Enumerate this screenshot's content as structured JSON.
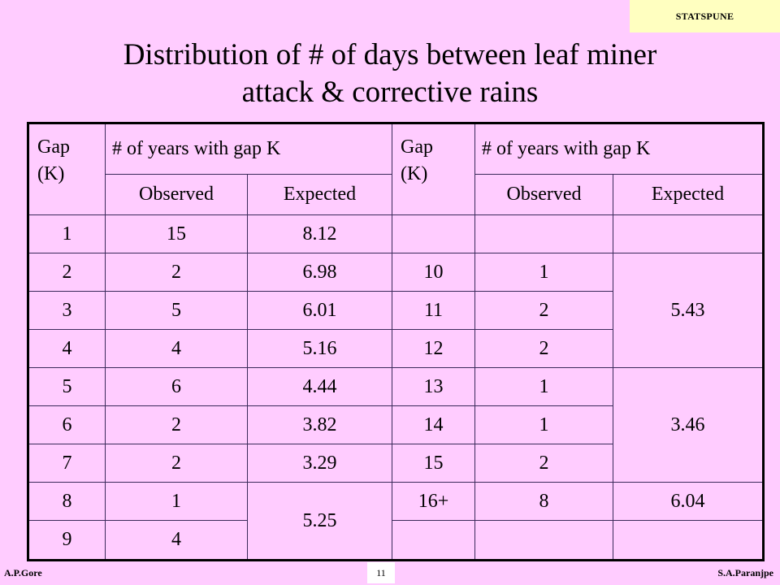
{
  "tag": "STATSPUNE",
  "title_line1": "Distribution of # of days between leaf miner",
  "title_line2": "attack & corrective rains",
  "table": {
    "gap_header": "Gap\n(K)",
    "years_header": "# of years with gap K",
    "observed": "Observed",
    "expected": "Expected",
    "rows": [
      {
        "k": "1",
        "obs": "15",
        "exp": "8.12",
        "k2": "",
        "obs2": ""
      },
      {
        "k": "2",
        "obs": "2",
        "exp": "6.98",
        "k2": "10",
        "obs2": "1"
      },
      {
        "k": "3",
        "obs": "5",
        "exp": "6.01",
        "k2": "11",
        "obs2": "2"
      },
      {
        "k": "4",
        "obs": "4",
        "exp": "5.16",
        "k2": "12",
        "obs2": "2"
      },
      {
        "k": "5",
        "obs": "6",
        "exp": "4.44",
        "k2": "13",
        "obs2": "1"
      },
      {
        "k": "6",
        "obs": "2",
        "exp": "3.82",
        "k2": "14",
        "obs2": "1"
      },
      {
        "k": "7",
        "obs": "2",
        "exp": "3.29",
        "k2": "15",
        "obs2": "2"
      },
      {
        "k": "8",
        "obs": "1",
        "exp": "5.25",
        "k2": "16+",
        "obs2": "8"
      },
      {
        "k": "9",
        "obs": "4",
        "exp": "",
        "k2": "",
        "obs2": ""
      }
    ],
    "exp2_group1": "5.43",
    "exp2_group2": "3.46",
    "exp2_16plus": "6.04"
  },
  "footer": {
    "left": "A.P.Gore",
    "page": "11",
    "right": "S.A.Paranjpe"
  }
}
